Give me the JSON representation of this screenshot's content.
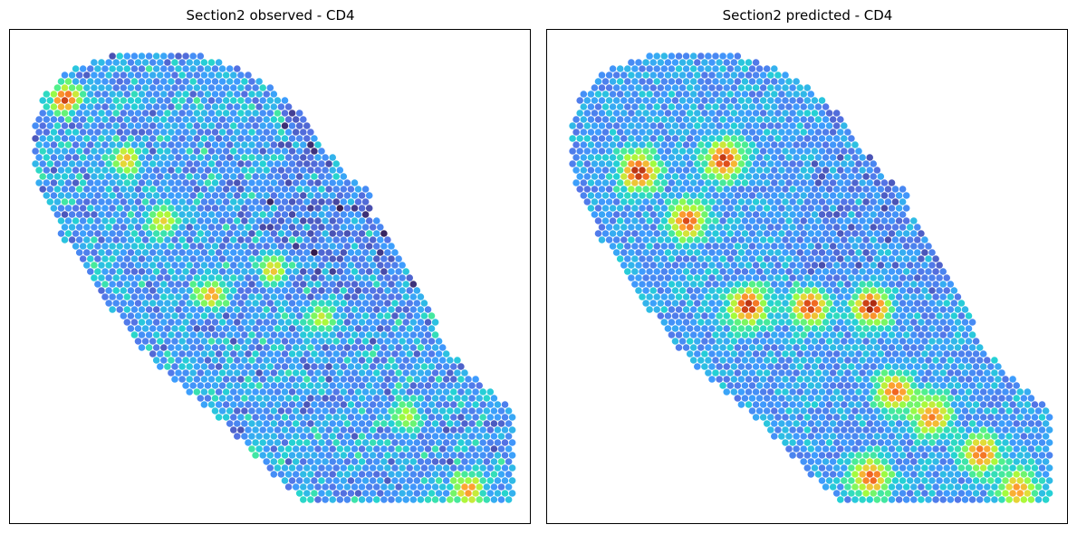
{
  "chart_data": [
    {
      "type": "scatter",
      "title": "Section2 observed - CD4",
      "xlabel": "",
      "ylabel": "",
      "grid": false,
      "legend": "none",
      "colormap": "turbo",
      "points": {
        "mode": "hex-lattice",
        "columns": 40,
        "value_range": [
          0,
          1
        ],
        "hotspots": [
          {
            "col": 3,
            "row": 4,
            "v": 0.95
          },
          {
            "col": 8,
            "row": 9,
            "v": 0.82
          },
          {
            "col": 11,
            "row": 14,
            "v": 0.78
          },
          {
            "col": 15,
            "row": 20,
            "v": 0.86
          },
          {
            "col": 20,
            "row": 18,
            "v": 0.8
          },
          {
            "col": 24,
            "row": 22,
            "v": 0.74
          },
          {
            "col": 31,
            "row": 30,
            "v": 0.72
          },
          {
            "col": 36,
            "row": 36,
            "v": 0.88
          },
          {
            "col": 33,
            "row": 38,
            "v": 0.7
          }
        ]
      },
      "notes": ""
    },
    {
      "type": "scatter",
      "title": "Section2 predicted - CD4",
      "xlabel": "",
      "ylabel": "",
      "grid": false,
      "legend": "none",
      "colormap": "turbo",
      "points": {
        "mode": "hex-lattice",
        "columns": 40,
        "value_range": [
          0,
          1
        ],
        "hotspots": [
          {
            "col": 6,
            "row": 10,
            "v": 0.98
          },
          {
            "col": 10,
            "row": 14,
            "v": 0.93
          },
          {
            "col": 13,
            "row": 9,
            "v": 0.96
          },
          {
            "col": 15,
            "row": 21,
            "v": 0.97
          },
          {
            "col": 20,
            "row": 21,
            "v": 0.95
          },
          {
            "col": 25,
            "row": 21,
            "v": 0.99
          },
          {
            "col": 27,
            "row": 28,
            "v": 0.9
          },
          {
            "col": 30,
            "row": 30,
            "v": 0.88
          },
          {
            "col": 34,
            "row": 33,
            "v": 0.9
          },
          {
            "col": 37,
            "row": 36,
            "v": 0.86
          },
          {
            "col": 25,
            "row": 35,
            "v": 0.92
          }
        ]
      }
    }
  ],
  "panels": [
    {
      "title": "Section2 observed - CD4"
    },
    {
      "title": "Section2 predicted - CD4"
    }
  ],
  "colors": {
    "frame": "#000000",
    "background": "#ffffff"
  }
}
